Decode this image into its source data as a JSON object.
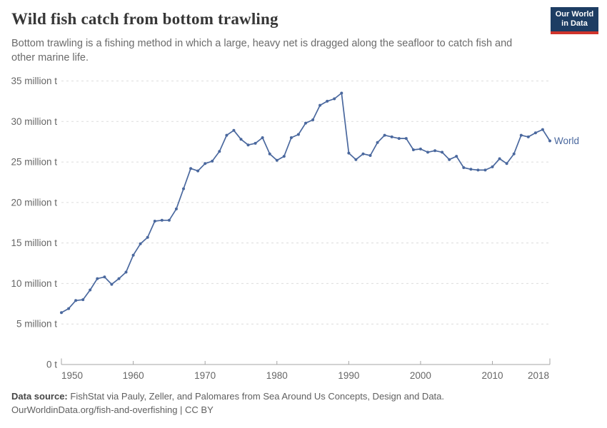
{
  "header": {
    "title": "Wild fish catch from bottom trawling",
    "subtitle": "Bottom trawling is a fishing method in which a large, heavy net is dragged along the seafloor to catch fish and other marine life."
  },
  "logo": {
    "line1": "Our World",
    "line2": "in Data",
    "bg_color": "#1d3d63",
    "stripe_color": "#d0342c"
  },
  "chart_data": {
    "type": "line",
    "title": "Wild fish catch from bottom trawling",
    "x_start_year": 1950,
    "xlim": [
      1950,
      2018
    ],
    "ylim": [
      0,
      35
    ],
    "grid": "horizontal-dashed",
    "legend_position": "end-of-line",
    "x_ticks": [
      1950,
      1960,
      1970,
      1980,
      1990,
      2000,
      2010,
      2018
    ],
    "y_ticks": [
      {
        "value": 0,
        "label": "0 t"
      },
      {
        "value": 5,
        "label": "5 million t"
      },
      {
        "value": 10,
        "label": "10 million t"
      },
      {
        "value": 15,
        "label": "15 million t"
      },
      {
        "value": 20,
        "label": "20 million t"
      },
      {
        "value": 25,
        "label": "25 million t"
      },
      {
        "value": 30,
        "label": "30 million t"
      },
      {
        "value": 35,
        "label": "35 million t"
      }
    ],
    "unit": "million tonnes",
    "series": [
      {
        "name": "World",
        "color": "#4a689e",
        "values": [
          6.4,
          6.9,
          7.9,
          8.0,
          9.2,
          10.6,
          10.8,
          9.9,
          10.6,
          11.4,
          13.5,
          14.9,
          15.7,
          17.7,
          17.8,
          17.8,
          19.2,
          21.7,
          24.2,
          23.9,
          24.8,
          25.1,
          26.3,
          28.3,
          28.9,
          27.8,
          27.1,
          27.3,
          28.0,
          26.0,
          25.2,
          25.7,
          28.0,
          28.4,
          29.8,
          30.2,
          32.0,
          32.5,
          32.8,
          33.5,
          26.1,
          25.3,
          26.0,
          25.8,
          27.4,
          28.3,
          28.1,
          27.9,
          27.9,
          26.5,
          26.6,
          26.2,
          26.4,
          26.2,
          25.3,
          25.7,
          24.3,
          24.1,
          24.0,
          24.0,
          24.4,
          25.4,
          24.8,
          26.0,
          28.3,
          28.1,
          28.6,
          29.0,
          27.6
        ]
      }
    ],
    "colors": {
      "grid": "#dcdcdc",
      "axis": "#a5a5a5",
      "tick_label": "#666666"
    }
  },
  "footer": {
    "source_label": "Data source:",
    "source_text": "FishStat via Pauly, Zeller, and Palomares from Sea Around Us Concepts, Design and Data.",
    "url": "OurWorldinData.org/fish-and-overfishing",
    "separator": " | ",
    "license": "CC BY"
  }
}
